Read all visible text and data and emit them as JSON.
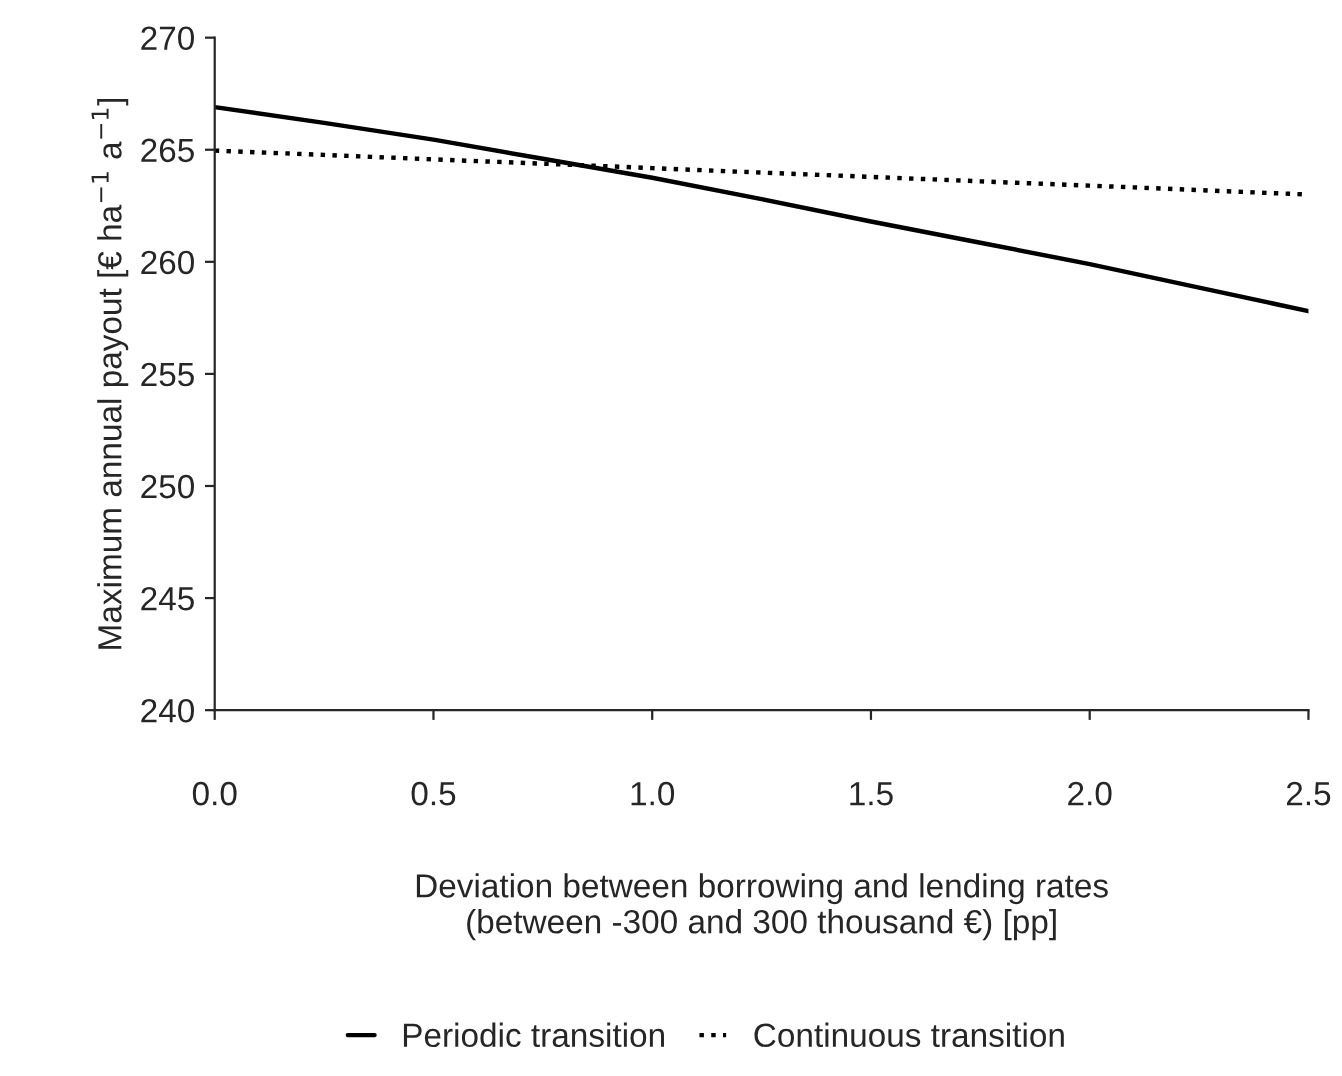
{
  "chart_data": {
    "type": "line",
    "xlabel": "Deviation between borrowing and lending rates\n(between -300 and 300 thousand €) [pp]",
    "ylabel": "Maximum annual payout [€ ha$^{−1}$ a$^{−1}$]",
    "x": [
      0.0,
      0.25,
      0.5,
      0.75,
      1.0,
      1.25,
      1.5,
      1.75,
      2.0,
      2.25,
      2.5
    ],
    "series": [
      {
        "name": "Periodic transition",
        "color": "#000000",
        "line_style": "solid",
        "values": [
          266.9,
          266.2,
          265.45,
          264.6,
          263.75,
          262.8,
          261.8,
          260.85,
          259.9,
          258.85,
          257.8
        ]
      },
      {
        "name": "Continuous transition",
        "color": "#000000",
        "line_style": "dotted",
        "values": [
          264.96,
          264.77,
          264.57,
          264.38,
          264.18,
          263.98,
          263.79,
          263.59,
          263.4,
          263.2,
          263.0
        ]
      }
    ],
    "xlim": [
      0.0,
      2.5
    ],
    "xticks": [
      {
        "value": 0.0,
        "label": "0.0"
      },
      0.5,
      {
        "value": 1.0,
        "label": "1.0"
      },
      1.5,
      {
        "value": 2.0,
        "label": "2.0"
      },
      2.5
    ],
    "ylim": [
      240,
      270
    ],
    "yticks": [
      240,
      245,
      250,
      255,
      260,
      265,
      270
    ],
    "grid": false,
    "legend": "bottom",
    "marker": "none"
  }
}
